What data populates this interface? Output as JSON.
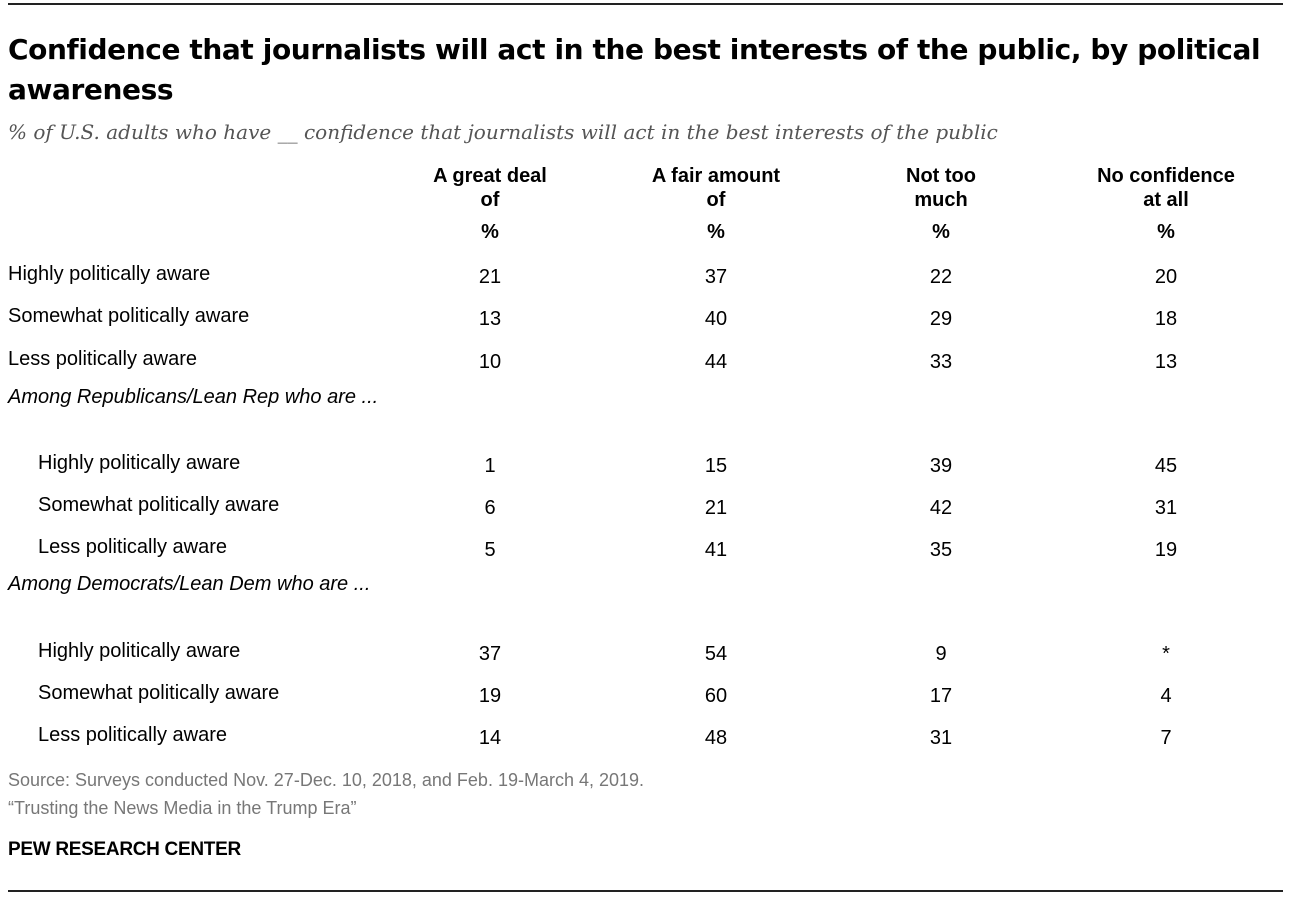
{
  "title": "Confidence that journalists will act in the best interests of the public, by political awareness",
  "subtitle": "% of U.S. adults who have __ confidence that journalists will act in the best interests of the public",
  "chart_data": {
    "type": "table",
    "columns": [
      {
        "line1": "A great deal",
        "line2": "of",
        "unit": "%"
      },
      {
        "line1": "A fair amount",
        "line2": "of",
        "unit": "%"
      },
      {
        "line1": "Not too",
        "line2": "much",
        "unit": "%"
      },
      {
        "line1": "No confidence",
        "line2": "at all",
        "unit": "%"
      }
    ],
    "rows": [
      {
        "label": "Highly politically aware",
        "values": [
          "21",
          "37",
          "22",
          "20"
        ]
      },
      {
        "label": "Somewhat politically aware",
        "values": [
          "13",
          "40",
          "29",
          "18"
        ]
      },
      {
        "label": "Less politically aware",
        "values": [
          "10",
          "44",
          "33",
          "13"
        ]
      },
      {
        "group_label": "Among Republicans/Lean Rep who are ..."
      },
      {
        "label": "Highly politically aware",
        "values": [
          "1",
          "15",
          "39",
          "45"
        ]
      },
      {
        "label": "Somewhat politically aware",
        "values": [
          "6",
          "21",
          "42",
          "31"
        ]
      },
      {
        "label": "Less politically aware",
        "values": [
          "5",
          "41",
          "35",
          "19"
        ]
      },
      {
        "group_label": "Among Democrats/Lean Dem who are ..."
      },
      {
        "label": "Highly politically aware",
        "values": [
          "37",
          "54",
          "9",
          "*"
        ]
      },
      {
        "label": "Somewhat politically aware",
        "values": [
          "19",
          "60",
          "17",
          "4"
        ]
      },
      {
        "label": "Less politically aware",
        "values": [
          "14",
          "48",
          "31",
          "7"
        ]
      }
    ]
  },
  "footer": {
    "source": "Source: Surveys conducted Nov. 27-Dec. 10, 2018, and Feb. 19-March 4, 2019.",
    "report": "“Trusting the News Media in the Trump Era”",
    "brand": "PEW RESEARCH CENTER"
  }
}
